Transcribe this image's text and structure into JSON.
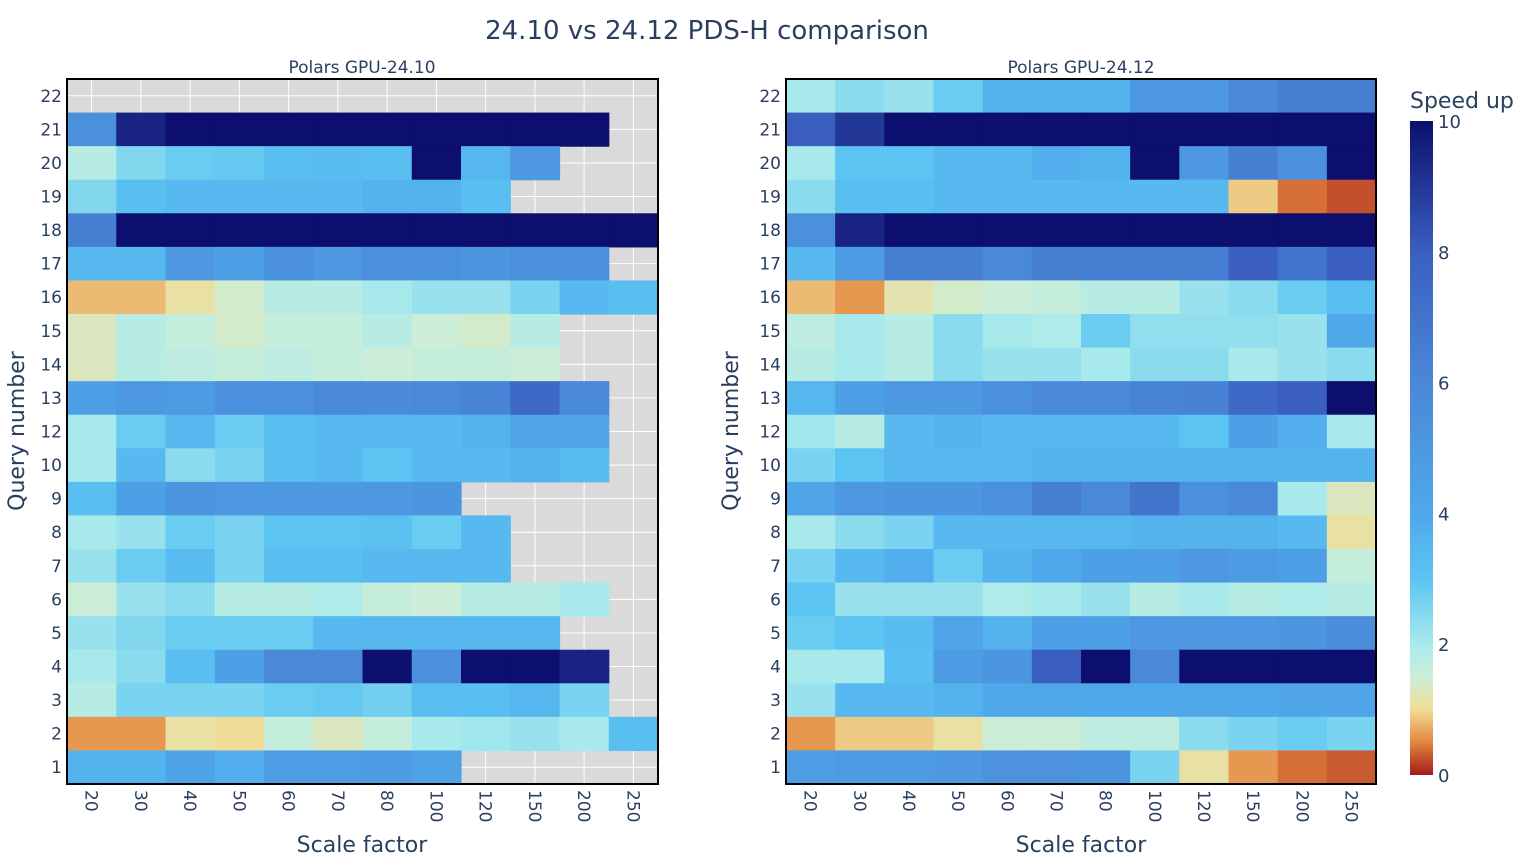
{
  "chart_data": [
    {
      "type": "heatmap",
      "title": "Polars GPU-24.10",
      "xlabel": "Scale factor",
      "ylabel": "Query number",
      "x": [
        "20",
        "30",
        "40",
        "50",
        "60",
        "70",
        "80",
        "100",
        "120",
        "150",
        "200",
        "250"
      ],
      "y": [
        "22",
        "21",
        "20",
        "19",
        "18",
        "17",
        "16",
        "15",
        "14",
        "13",
        "12",
        "10",
        "9",
        "8",
        "7",
        "6",
        "5",
        "4",
        "3",
        "2",
        "1"
      ],
      "z": [
        [
          null,
          null,
          null,
          null,
          null,
          null,
          null,
          null,
          null,
          null,
          null,
          null
        ],
        [
          5.5,
          9.5,
          10,
          10,
          10,
          10,
          10,
          10,
          10,
          10,
          10,
          null
        ],
        [
          1.8,
          2.5,
          2.8,
          2.9,
          3.2,
          3.3,
          3.2,
          10,
          3.5,
          5,
          null,
          null
        ],
        [
          2.5,
          3.2,
          3.4,
          3.4,
          3.4,
          3.4,
          3.6,
          3.6,
          3.2,
          null,
          null,
          null
        ],
        [
          6.5,
          10,
          10,
          10,
          10,
          10,
          10,
          10,
          10,
          10,
          10,
          10
        ],
        [
          3.4,
          3.4,
          5,
          4.5,
          5.5,
          5,
          5.5,
          5.5,
          5.2,
          5.5,
          5.5,
          null
        ],
        [
          0.8,
          0.8,
          1.1,
          1.4,
          1.8,
          1.8,
          2,
          2.2,
          2.2,
          2.6,
          3.4,
          3.2
        ],
        [
          1.3,
          1.8,
          1.6,
          1.4,
          1.6,
          1.6,
          1.8,
          1.5,
          1.4,
          1.8,
          null,
          null
        ],
        [
          1.3,
          1.8,
          1.7,
          1.6,
          1.7,
          1.6,
          1.5,
          1.6,
          1.6,
          1.5,
          null,
          null
        ],
        [
          4.5,
          5,
          4.8,
          5.5,
          5.5,
          6,
          5.8,
          6,
          6.2,
          7.5,
          6,
          null
        ],
        [
          2,
          2.8,
          3.5,
          2.8,
          3.2,
          3.4,
          3.4,
          3.4,
          3.6,
          4.2,
          4.2,
          null
        ],
        [
          2,
          3.4,
          2.4,
          2.6,
          3.2,
          3.4,
          3,
          3.4,
          3.4,
          3.6,
          3.3,
          null
        ],
        [
          3.2,
          4.5,
          5.2,
          5,
          5,
          5,
          5,
          5.2,
          null,
          null,
          null,
          null
        ],
        [
          2,
          2.2,
          2.8,
          2.6,
          3,
          3,
          3.1,
          2.8,
          3.4,
          null,
          null,
          null
        ],
        [
          2.2,
          2.8,
          3.3,
          2.6,
          3.2,
          3.2,
          3.4,
          3.4,
          3.4,
          null,
          null,
          null
        ],
        [
          1.5,
          2.2,
          2.4,
          1.8,
          1.8,
          1.9,
          1.6,
          1.5,
          1.8,
          1.8,
          2,
          null
        ],
        [
          2.2,
          2.5,
          2.8,
          2.8,
          2.8,
          3.4,
          3.5,
          3.5,
          3.5,
          3.5,
          null,
          null
        ],
        [
          2,
          2.4,
          3.2,
          4.5,
          6,
          6,
          10,
          5.5,
          10,
          10,
          9.5,
          null
        ],
        [
          1.8,
          2.6,
          2.6,
          2.6,
          2.8,
          2.9,
          2.7,
          3.2,
          3.2,
          3.5,
          2.6,
          null
        ],
        [
          0.6,
          0.6,
          1.1,
          1,
          1.6,
          1.3,
          1.6,
          2,
          2.1,
          2.2,
          2,
          3.2
        ],
        [
          3.6,
          3.6,
          4.4,
          3.8,
          4.6,
          4.6,
          4.8,
          4.4,
          null,
          null,
          null,
          null
        ]
      ]
    },
    {
      "type": "heatmap",
      "title": "Polars GPU-24.12",
      "xlabel": "Scale factor",
      "ylabel": "Query number",
      "x": [
        "20",
        "30",
        "40",
        "50",
        "60",
        "70",
        "80",
        "100",
        "120",
        "150",
        "200",
        "250"
      ],
      "y": [
        "22",
        "21",
        "20",
        "19",
        "18",
        "17",
        "16",
        "15",
        "14",
        "13",
        "12",
        "10",
        "9",
        "8",
        "7",
        "6",
        "5",
        "4",
        "3",
        "2",
        "1"
      ],
      "z": [
        [
          2,
          2.4,
          2.2,
          2.8,
          3.6,
          3.6,
          3.6,
          5,
          5,
          6,
          6.5,
          6.5
        ],
        [
          8,
          9,
          10,
          10,
          10,
          10,
          10,
          10,
          10,
          10,
          10,
          10
        ],
        [
          2,
          3,
          3,
          3.4,
          3.4,
          3.8,
          3.6,
          10,
          5,
          6.5,
          5.5,
          10
        ],
        [
          2.4,
          3.2,
          3.2,
          3.4,
          3.4,
          3.4,
          3.4,
          3.4,
          3.4,
          0.9,
          0.4,
          0.25
        ],
        [
          5.5,
          9.5,
          10,
          10,
          10,
          10,
          10,
          10,
          10,
          10,
          10,
          10
        ],
        [
          3.4,
          4.8,
          6.5,
          6.5,
          6,
          6.5,
          6.5,
          6.5,
          6.5,
          8,
          7,
          8
        ],
        [
          0.8,
          0.6,
          1.2,
          1.4,
          1.5,
          1.6,
          1.8,
          1.8,
          2.2,
          2.4,
          2.8,
          3.2
        ],
        [
          1.7,
          2,
          1.8,
          2.4,
          2,
          1.9,
          2.8,
          2.3,
          2.3,
          2.3,
          2.2,
          4
        ],
        [
          1.8,
          2,
          1.8,
          2.4,
          2.2,
          2.2,
          2,
          2.4,
          2.4,
          2,
          2.2,
          2.4
        ],
        [
          3.5,
          4.5,
          5,
          5,
          5.5,
          6,
          6,
          6.2,
          6.3,
          7.5,
          8,
          10
        ],
        [
          2.1,
          1.8,
          3.4,
          3.6,
          3.4,
          3.4,
          3.4,
          3.4,
          3,
          4.5,
          3.8,
          2
        ],
        [
          2.6,
          3,
          3.5,
          3.4,
          3.5,
          3.6,
          3.6,
          3.6,
          3.6,
          3.6,
          3.6,
          3.6
        ],
        [
          4.2,
          5,
          5.2,
          5.2,
          5.5,
          6.5,
          6,
          7,
          5.5,
          6,
          2,
          1.3
        ],
        [
          2,
          2.4,
          2.6,
          3.4,
          3.4,
          3.5,
          3.5,
          3.6,
          3.6,
          3.6,
          3.4,
          1.1
        ],
        [
          2.6,
          3.4,
          3.8,
          2.8,
          3.6,
          4,
          4.5,
          4.5,
          5,
          4.8,
          4.5,
          1.6
        ],
        [
          3,
          2.2,
          2.2,
          2.2,
          1.9,
          2,
          2.2,
          1.8,
          2,
          1.8,
          1.9,
          1.8
        ],
        [
          2.8,
          3,
          3.3,
          4.2,
          3.6,
          4.5,
          4.5,
          5,
          5,
          5,
          5.2,
          5.6
        ],
        [
          2,
          2,
          3.2,
          4.8,
          5.2,
          8,
          10,
          6,
          10,
          10,
          10,
          10
        ],
        [
          2.2,
          3.4,
          3.4,
          3.6,
          4,
          4,
          4,
          4,
          4,
          4,
          4.2,
          4.2
        ],
        [
          0.6,
          0.9,
          0.9,
          1.1,
          1.5,
          1.5,
          1.7,
          1.7,
          2.4,
          2.6,
          2.8,
          2.6
        ],
        [
          4.6,
          4.8,
          4.8,
          5,
          5.4,
          5.4,
          5.2,
          2.6,
          1.1,
          0.6,
          0.4,
          0.3
        ]
      ]
    }
  ],
  "figure": {
    "title": "24.10 vs 24.12 PDS-H comparison",
    "colorbar": {
      "title": "Speed up",
      "range": [
        0,
        10
      ],
      "ticks": [
        "0",
        "2",
        "4",
        "6",
        "8",
        "10"
      ],
      "colorscale": [
        [
          0,
          "#a31a1a"
        ],
        [
          0.5,
          "#e3863e"
        ],
        [
          1,
          "#f0dc96"
        ],
        [
          1.5,
          "#cceed8"
        ],
        [
          2,
          "#a8eaec"
        ],
        [
          3,
          "#5cc4f2"
        ],
        [
          4,
          "#4fa8ea"
        ],
        [
          6,
          "#4a88d8"
        ],
        [
          8,
          "#3a5fc0"
        ],
        [
          10,
          "#0c0f6e"
        ]
      ]
    },
    "missing_color": "#dadada"
  }
}
